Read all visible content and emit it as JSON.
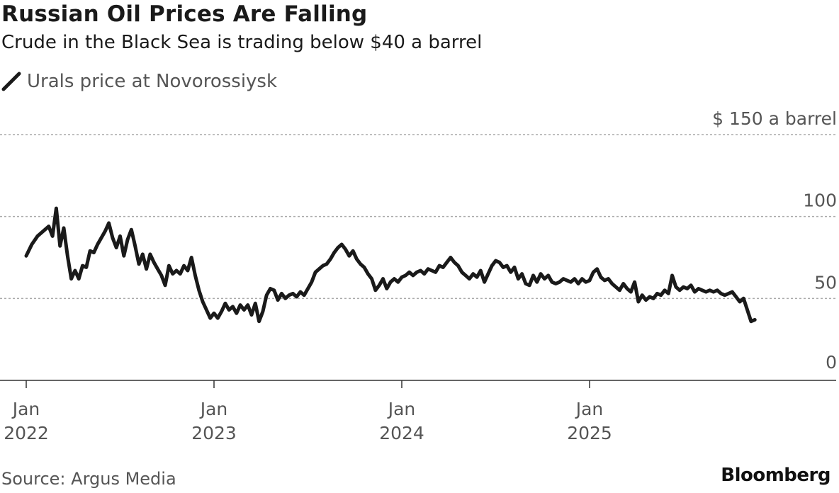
{
  "header": {
    "title": "Russian Oil Prices Are Falling",
    "subtitle": "Crude in the Black Sea is trading below $40 a barrel"
  },
  "legend": {
    "label": "Urals price at Novorossiysk"
  },
  "footer": {
    "source": "Source: Argus Media",
    "brand": "Bloomberg"
  },
  "colors": {
    "line": "#1a1a1a",
    "grid": "#aaaaaa",
    "axis": "#333333",
    "text_muted": "#555555"
  },
  "chart_data": {
    "type": "line",
    "title": "Russian Oil Prices Are Falling",
    "subtitle": "Crude in the Black Sea is trading below $40 a barrel",
    "ylabel_unit": "$ a barrel",
    "ylim": [
      0,
      150
    ],
    "yticks": [
      {
        "value": 0,
        "label": "0"
      },
      {
        "value": 50,
        "label": "50"
      },
      {
        "value": 100,
        "label": "100"
      },
      {
        "value": 150,
        "label": "$ 150 a barrel"
      }
    ],
    "xlim": [
      2021.96,
      2026.2
    ],
    "xticks": [
      {
        "value": 2022.0,
        "line1": "Jan",
        "line2": "2022"
      },
      {
        "value": 2023.0,
        "line1": "Jan",
        "line2": "2023"
      },
      {
        "value": 2024.0,
        "line1": "Jan",
        "line2": "2024"
      },
      {
        "value": 2025.0,
        "line1": "Jan",
        "line2": "2025"
      }
    ],
    "series": [
      {
        "name": "Urals price at Novorossiysk",
        "points": [
          [
            2022.0,
            76
          ],
          [
            2022.03,
            83
          ],
          [
            2022.06,
            88
          ],
          [
            2022.09,
            91
          ],
          [
            2022.12,
            94
          ],
          [
            2022.14,
            88
          ],
          [
            2022.16,
            105
          ],
          [
            2022.18,
            82
          ],
          [
            2022.2,
            93
          ],
          [
            2022.22,
            76
          ],
          [
            2022.24,
            62
          ],
          [
            2022.26,
            67
          ],
          [
            2022.28,
            62
          ],
          [
            2022.3,
            70
          ],
          [
            2022.32,
            69
          ],
          [
            2022.34,
            79
          ],
          [
            2022.36,
            78
          ],
          [
            2022.38,
            83
          ],
          [
            2022.4,
            87
          ],
          [
            2022.42,
            91
          ],
          [
            2022.44,
            96
          ],
          [
            2022.46,
            87
          ],
          [
            2022.48,
            81
          ],
          [
            2022.5,
            88
          ],
          [
            2022.52,
            76
          ],
          [
            2022.54,
            86
          ],
          [
            2022.56,
            92
          ],
          [
            2022.58,
            82
          ],
          [
            2022.6,
            71
          ],
          [
            2022.62,
            77
          ],
          [
            2022.64,
            68
          ],
          [
            2022.66,
            77
          ],
          [
            2022.68,
            72
          ],
          [
            2022.7,
            68
          ],
          [
            2022.72,
            64
          ],
          [
            2022.74,
            58
          ],
          [
            2022.76,
            70
          ],
          [
            2022.78,
            65
          ],
          [
            2022.8,
            67
          ],
          [
            2022.82,
            65
          ],
          [
            2022.84,
            70
          ],
          [
            2022.86,
            67
          ],
          [
            2022.88,
            75
          ],
          [
            2022.9,
            64
          ],
          [
            2022.92,
            55
          ],
          [
            2022.94,
            48
          ],
          [
            2022.96,
            43
          ],
          [
            2022.98,
            38
          ],
          [
            2023.0,
            41
          ],
          [
            2023.02,
            38
          ],
          [
            2023.04,
            42
          ],
          [
            2023.06,
            47
          ],
          [
            2023.08,
            43
          ],
          [
            2023.1,
            45
          ],
          [
            2023.12,
            41
          ],
          [
            2023.14,
            46
          ],
          [
            2023.16,
            43
          ],
          [
            2023.18,
            46
          ],
          [
            2023.2,
            40
          ],
          [
            2023.22,
            47
          ],
          [
            2023.24,
            36
          ],
          [
            2023.26,
            42
          ],
          [
            2023.28,
            52
          ],
          [
            2023.3,
            56
          ],
          [
            2023.32,
            55
          ],
          [
            2023.34,
            49
          ],
          [
            2023.36,
            53
          ],
          [
            2023.38,
            50
          ],
          [
            2023.4,
            52
          ],
          [
            2023.42,
            53
          ],
          [
            2023.44,
            51
          ],
          [
            2023.46,
            54
          ],
          [
            2023.48,
            52
          ],
          [
            2023.5,
            56
          ],
          [
            2023.52,
            60
          ],
          [
            2023.54,
            66
          ],
          [
            2023.56,
            68
          ],
          [
            2023.58,
            70
          ],
          [
            2023.6,
            71
          ],
          [
            2023.62,
            74
          ],
          [
            2023.64,
            78
          ],
          [
            2023.66,
            81
          ],
          [
            2023.68,
            83
          ],
          [
            2023.7,
            80
          ],
          [
            2023.72,
            76
          ],
          [
            2023.74,
            79
          ],
          [
            2023.76,
            74
          ],
          [
            2023.78,
            71
          ],
          [
            2023.8,
            69
          ],
          [
            2023.82,
            65
          ],
          [
            2023.84,
            62
          ],
          [
            2023.86,
            55
          ],
          [
            2023.88,
            58
          ],
          [
            2023.9,
            62
          ],
          [
            2023.92,
            56
          ],
          [
            2023.94,
            60
          ],
          [
            2023.96,
            62
          ],
          [
            2023.98,
            60
          ],
          [
            2024.0,
            63
          ],
          [
            2024.02,
            64
          ],
          [
            2024.04,
            66
          ],
          [
            2024.06,
            64
          ],
          [
            2024.08,
            66
          ],
          [
            2024.1,
            67
          ],
          [
            2024.12,
            65
          ],
          [
            2024.14,
            68
          ],
          [
            2024.16,
            67
          ],
          [
            2024.18,
            66
          ],
          [
            2024.2,
            70
          ],
          [
            2024.22,
            69
          ],
          [
            2024.24,
            72
          ],
          [
            2024.26,
            75
          ],
          [
            2024.28,
            72
          ],
          [
            2024.3,
            70
          ],
          [
            2024.32,
            66
          ],
          [
            2024.34,
            64
          ],
          [
            2024.36,
            62
          ],
          [
            2024.38,
            65
          ],
          [
            2024.4,
            63
          ],
          [
            2024.42,
            67
          ],
          [
            2024.44,
            60
          ],
          [
            2024.46,
            65
          ],
          [
            2024.48,
            70
          ],
          [
            2024.5,
            73
          ],
          [
            2024.52,
            72
          ],
          [
            2024.54,
            69
          ],
          [
            2024.56,
            70
          ],
          [
            2024.58,
            66
          ],
          [
            2024.6,
            69
          ],
          [
            2024.62,
            62
          ],
          [
            2024.64,
            65
          ],
          [
            2024.66,
            59
          ],
          [
            2024.68,
            58
          ],
          [
            2024.7,
            64
          ],
          [
            2024.72,
            60
          ],
          [
            2024.74,
            65
          ],
          [
            2024.76,
            62
          ],
          [
            2024.78,
            64
          ],
          [
            2024.8,
            60
          ],
          [
            2024.82,
            59
          ],
          [
            2024.84,
            60
          ],
          [
            2024.86,
            62
          ],
          [
            2024.88,
            61
          ],
          [
            2024.9,
            60
          ],
          [
            2024.92,
            62
          ],
          [
            2024.94,
            59
          ],
          [
            2024.96,
            62
          ],
          [
            2024.98,
            60
          ],
          [
            2025.0,
            61
          ],
          [
            2025.02,
            66
          ],
          [
            2025.04,
            68
          ],
          [
            2025.06,
            63
          ],
          [
            2025.08,
            61
          ],
          [
            2025.1,
            62
          ],
          [
            2025.12,
            59
          ],
          [
            2025.14,
            57
          ],
          [
            2025.16,
            55
          ],
          [
            2025.18,
            59
          ],
          [
            2025.2,
            56
          ],
          [
            2025.22,
            54
          ],
          [
            2025.24,
            60
          ],
          [
            2025.26,
            48
          ],
          [
            2025.28,
            52
          ],
          [
            2025.3,
            49
          ],
          [
            2025.32,
            51
          ],
          [
            2025.34,
            50
          ],
          [
            2025.36,
            53
          ],
          [
            2025.38,
            52
          ],
          [
            2025.4,
            55
          ],
          [
            2025.42,
            53
          ],
          [
            2025.44,
            64
          ],
          [
            2025.46,
            57
          ],
          [
            2025.48,
            55
          ],
          [
            2025.5,
            57
          ],
          [
            2025.52,
            56
          ],
          [
            2025.54,
            58
          ],
          [
            2025.56,
            54
          ],
          [
            2025.58,
            56
          ],
          [
            2025.6,
            55
          ],
          [
            2025.62,
            54
          ],
          [
            2025.64,
            55
          ],
          [
            2025.66,
            54
          ],
          [
            2025.68,
            55
          ],
          [
            2025.7,
            53
          ],
          [
            2025.72,
            52
          ],
          [
            2025.74,
            53
          ],
          [
            2025.76,
            54
          ],
          [
            2025.78,
            51
          ],
          [
            2025.8,
            48
          ],
          [
            2025.82,
            50
          ],
          [
            2025.84,
            43
          ],
          [
            2025.86,
            36
          ],
          [
            2025.88,
            37
          ]
        ]
      }
    ]
  }
}
